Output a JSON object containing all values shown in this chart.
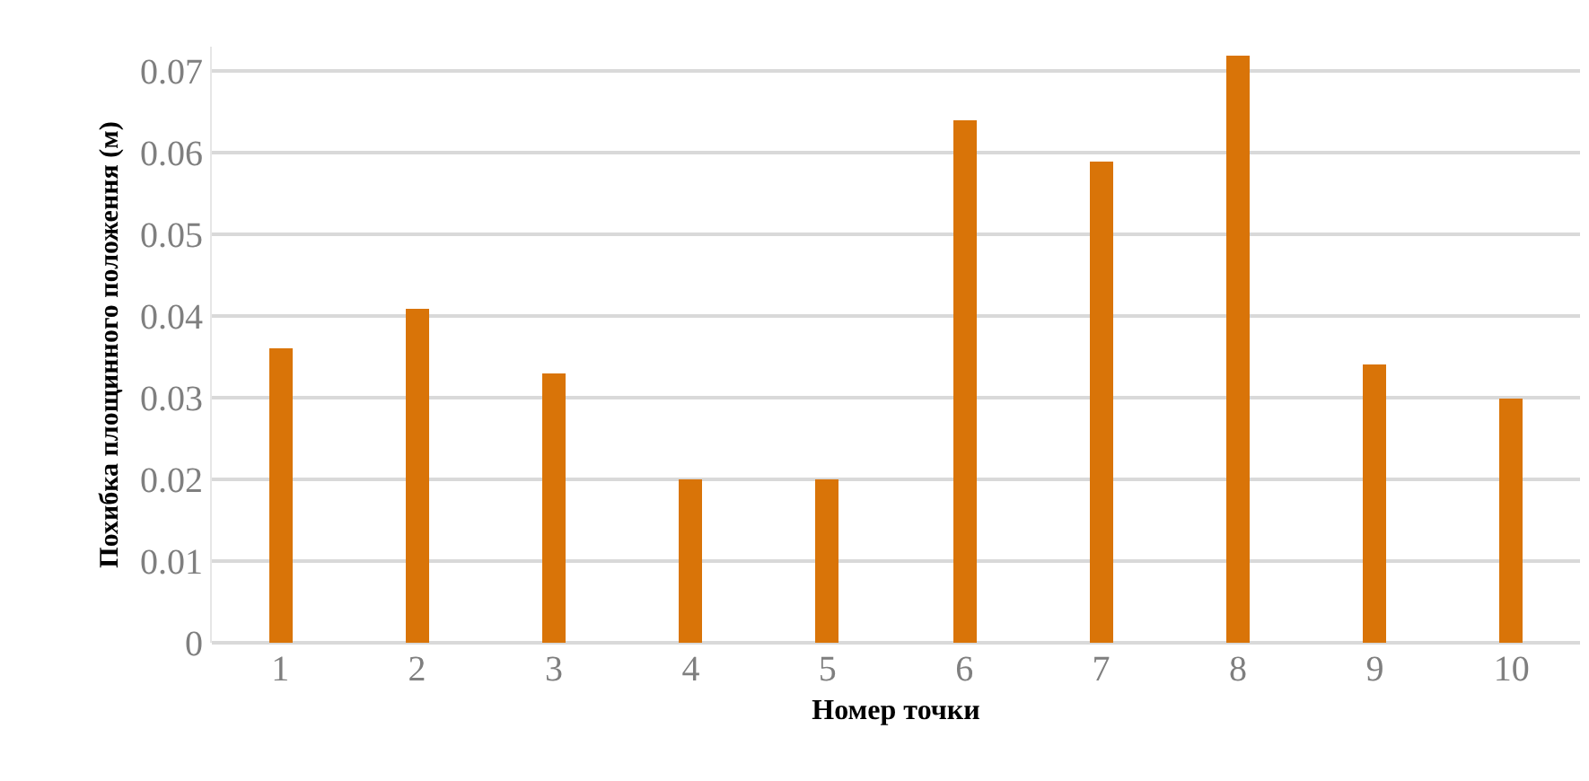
{
  "chart_data": {
    "type": "bar",
    "xlabel": "Номер точки",
    "ylabel": "Похибка площинного положення (м)",
    "categories": [
      "1",
      "2",
      "3",
      "4",
      "5",
      "6",
      "7",
      "8",
      "9",
      "10"
    ],
    "values": [
      0.036,
      0.041,
      0.033,
      0.02,
      0.02,
      0.064,
      0.059,
      0.072,
      0.034,
      0.03
    ],
    "color": "#d97408",
    "ylim": [
      0,
      0.073
    ],
    "yticks": [
      0,
      0.01,
      0.02,
      0.03,
      0.04,
      0.05,
      0.06,
      0.07
    ],
    "grid": "y",
    "legend": false
  }
}
